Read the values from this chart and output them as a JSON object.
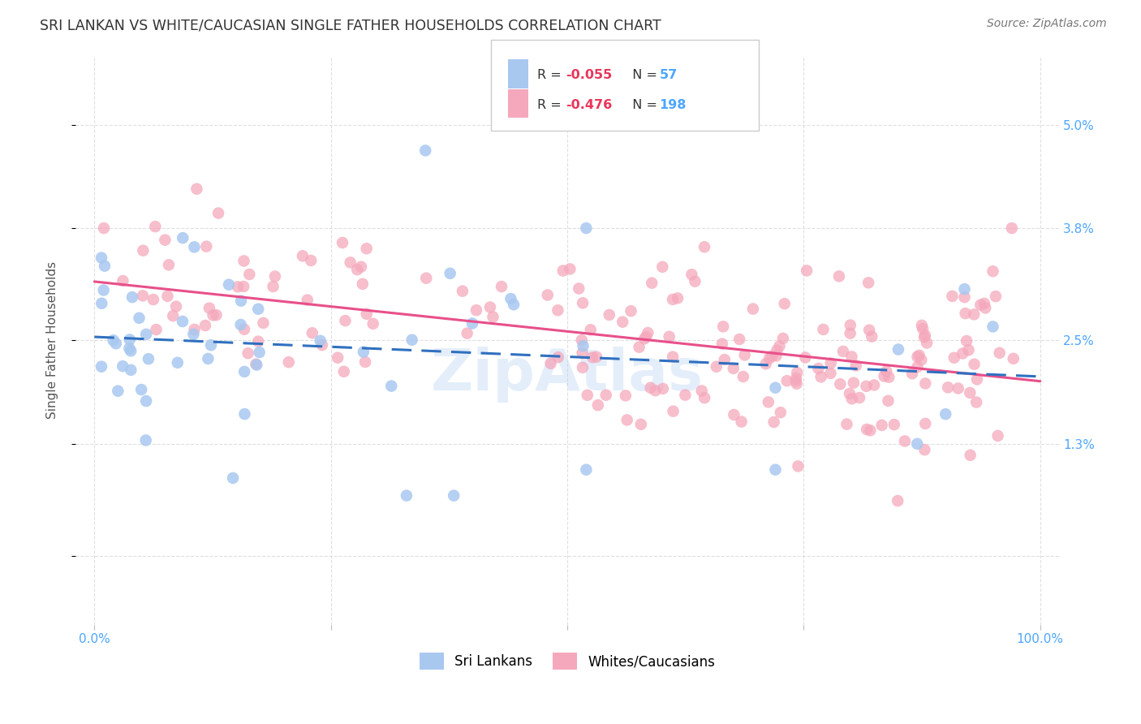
{
  "title": "SRI LANKAN VS WHITE/CAUCASIAN SINGLE FATHER HOUSEHOLDS CORRELATION CHART",
  "source": "Source: ZipAtlas.com",
  "ylabel": "Single Father Households",
  "sri_lankan_color": "#a8c8f0",
  "white_color": "#f5a8bc",
  "sri_lankan_R": -0.055,
  "sri_lankan_N": 57,
  "white_R": -0.476,
  "white_N": 198,
  "legend_label_sri": "Sri Lankans",
  "legend_label_white": "Whites/Caucasians",
  "watermark": "ZipAtlas",
  "background_color": "#ffffff",
  "grid_color": "#d8d8d8",
  "title_color": "#333333",
  "axis_label_color": "#4da6ff",
  "legend_R_color": "#e8365a",
  "legend_N_color": "#4da6ff",
  "sri_line_color": "#3070c0",
  "white_line_color": "#e8508a",
  "ytick_vals": [
    0.0,
    0.013,
    0.025,
    0.038,
    0.05
  ],
  "ytick_labels": [
    "",
    "1.3%",
    "2.5%",
    "3.8%",
    "5.0%"
  ],
  "ylim": [
    -0.008,
    0.058
  ],
  "xlim": [
    -0.02,
    1.02
  ]
}
